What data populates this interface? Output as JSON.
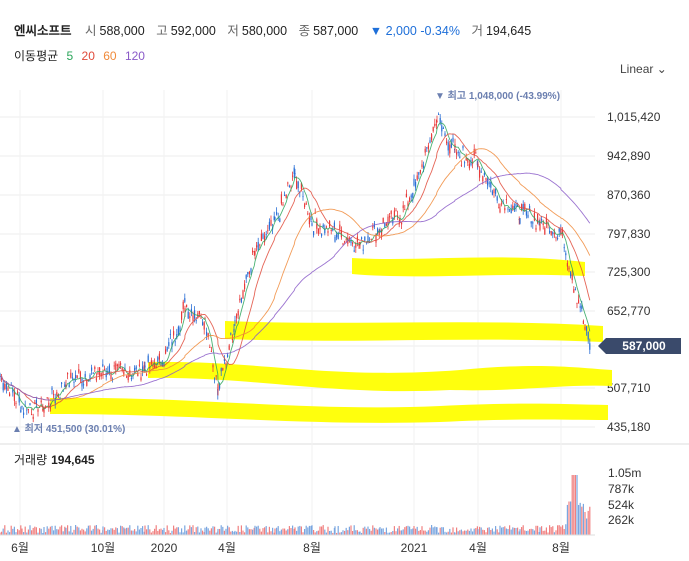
{
  "header": {
    "name": "엔씨소프트",
    "open_label": "시",
    "open": "588,000",
    "high_label": "고",
    "high": "592,000",
    "low_label": "저",
    "low": "580,000",
    "close_label": "종",
    "close": "587,000",
    "change": "▼ 2,000 -0.34%",
    "volume_label": "거",
    "volume": "194,645"
  },
  "moving_average": {
    "label": "이동평균",
    "periods": [
      {
        "value": "5",
        "color": "#2aa55a"
      },
      {
        "value": "20",
        "color": "#e04a3a"
      },
      {
        "value": "60",
        "color": "#f08a3a"
      },
      {
        "value": "120",
        "color": "#8a5ac8"
      }
    ]
  },
  "scale_toggle": "Linear",
  "chart_data": {
    "type": "candlestick",
    "y_ticks": [
      "1,015,420",
      "942,890",
      "870,360",
      "797,830",
      "725,300",
      "652,770",
      "587,000",
      "507,710",
      "435,180"
    ],
    "ylim": [
      435180,
      1048000
    ],
    "x_ticks": [
      "6월",
      "10월",
      "2020",
      "4월",
      "8월",
      "2021",
      "4월",
      "8월"
    ],
    "current_price_label": "587,000",
    "max_annotation": "최고 1,048,000 (-43.99%)",
    "min_annotation": "최저 451,500 (30.01%)",
    "close_path": [
      [
        "6월",
        530000
      ],
      [
        "7월",
        475000
      ],
      [
        "8월",
        470000
      ],
      [
        "9월",
        520000
      ],
      [
        "10월",
        540000
      ],
      [
        "11월",
        535000
      ],
      [
        "12월",
        545000
      ],
      [
        "2020",
        560000
      ],
      [
        "2월",
        660000
      ],
      [
        "3월",
        640000
      ],
      [
        "3월말",
        500000
      ],
      [
        "4월",
        640000
      ],
      [
        "5월",
        760000
      ],
      [
        "6월",
        820000
      ],
      [
        "7월",
        910000
      ],
      [
        "8월",
        820000
      ],
      [
        "9월",
        800000
      ],
      [
        "10월",
        780000
      ],
      [
        "11월",
        810000
      ],
      [
        "12월",
        830000
      ],
      [
        "2021",
        880000
      ],
      [
        "2월",
        1010000
      ],
      [
        "3월",
        950000
      ],
      [
        "4월",
        930000
      ],
      [
        "5월",
        860000
      ],
      [
        "6월",
        840000
      ],
      [
        "7월",
        820000
      ],
      [
        "8월",
        800000
      ],
      [
        "8월말",
        587000
      ]
    ],
    "volume": {
      "label": "거래량",
      "value": "194,645",
      "ticks": [
        "1.05m",
        "787k",
        "524k",
        "262k"
      ]
    }
  }
}
